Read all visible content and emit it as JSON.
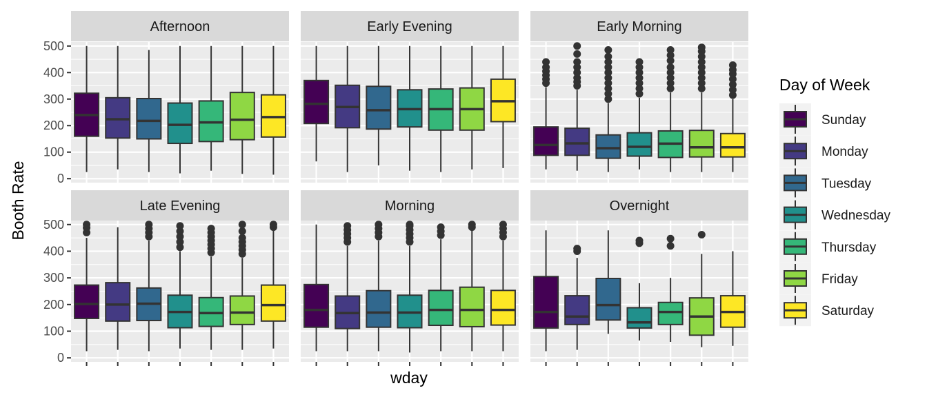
{
  "chart_data": {
    "type": "boxplot",
    "facets": [
      "Afternoon",
      "Early Evening",
      "Early Morning",
      "Late Evening",
      "Morning",
      "Overnight"
    ],
    "categories": [
      "Sunday",
      "Monday",
      "Tuesday",
      "Wednesday",
      "Thursday",
      "Friday",
      "Saturday"
    ],
    "colors": [
      "#440154",
      "#443A83",
      "#31688E",
      "#21908C",
      "#35B779",
      "#8FD744",
      "#FDE725"
    ],
    "xlabel": "wday",
    "ylabel": "Booth Rate",
    "ylim": [
      -15,
      515
    ],
    "yticks": [
      0,
      100,
      200,
      300,
      400,
      500
    ],
    "legend": {
      "title": "Day of Week",
      "position": "right"
    },
    "grid": true,
    "panels": [
      {
        "facet": "Afternoon",
        "boxes": [
          {
            "min": 25,
            "q1": 160,
            "median": 240,
            "q3": 322,
            "max": 500,
            "outliers": []
          },
          {
            "min": 35,
            "q1": 153,
            "median": 224,
            "q3": 305,
            "max": 500,
            "outliers": []
          },
          {
            "min": 25,
            "q1": 150,
            "median": 218,
            "q3": 302,
            "max": 485,
            "outliers": []
          },
          {
            "min": 20,
            "q1": 133,
            "median": 203,
            "q3": 285,
            "max": 500,
            "outliers": []
          },
          {
            "min": 30,
            "q1": 140,
            "median": 212,
            "q3": 293,
            "max": 500,
            "outliers": []
          },
          {
            "min": 18,
            "q1": 147,
            "median": 222,
            "q3": 325,
            "max": 500,
            "outliers": []
          },
          {
            "min": 15,
            "q1": 157,
            "median": 232,
            "q3": 316,
            "max": 500,
            "outliers": []
          }
        ]
      },
      {
        "facet": "Early Evening",
        "boxes": [
          {
            "min": 65,
            "q1": 208,
            "median": 282,
            "q3": 370,
            "max": 500,
            "outliers": []
          },
          {
            "min": 25,
            "q1": 192,
            "median": 270,
            "q3": 352,
            "max": 500,
            "outliers": []
          },
          {
            "min": 50,
            "q1": 187,
            "median": 258,
            "q3": 348,
            "max": 500,
            "outliers": []
          },
          {
            "min": 30,
            "q1": 195,
            "median": 262,
            "q3": 335,
            "max": 500,
            "outliers": []
          },
          {
            "min": 25,
            "q1": 183,
            "median": 262,
            "q3": 338,
            "max": 500,
            "outliers": []
          },
          {
            "min": 35,
            "q1": 183,
            "median": 262,
            "q3": 342,
            "max": 500,
            "outliers": []
          },
          {
            "min": 40,
            "q1": 215,
            "median": 292,
            "q3": 375,
            "max": 500,
            "outliers": []
          }
        ]
      },
      {
        "facet": "Early Morning",
        "boxes": [
          {
            "min": 35,
            "q1": 88,
            "median": 127,
            "q3": 195,
            "max": 345,
            "outliers": [
              360,
              375,
              390,
              405,
              420,
              440
            ]
          },
          {
            "min": 30,
            "q1": 88,
            "median": 133,
            "q3": 190,
            "max": 335,
            "outliers": [
              350,
              365,
              380,
              400,
              420,
              440,
              470,
              500
            ]
          },
          {
            "min": 25,
            "q1": 77,
            "median": 115,
            "q3": 165,
            "max": 285,
            "outliers": [
              300,
              320,
              340,
              360,
              380,
              400,
              420,
              440,
              460,
              485
            ]
          },
          {
            "min": 35,
            "q1": 85,
            "median": 120,
            "q3": 173,
            "max": 305,
            "outliers": [
              320,
              340,
              360,
              380,
              400,
              420,
              440
            ]
          },
          {
            "min": 25,
            "q1": 80,
            "median": 132,
            "q3": 180,
            "max": 325,
            "outliers": [
              340,
              360,
              380,
              400,
              420,
              445,
              465,
              485
            ]
          },
          {
            "min": 25,
            "q1": 82,
            "median": 118,
            "q3": 182,
            "max": 325,
            "outliers": [
              340,
              360,
              380,
              400,
              420,
              440,
              460,
              480,
              495
            ]
          },
          {
            "min": 25,
            "q1": 82,
            "median": 118,
            "q3": 170,
            "max": 300,
            "outliers": [
              315,
              335,
              355,
              375,
              395,
              410,
              428
            ]
          }
        ]
      },
      {
        "facet": "Late Evening",
        "boxes": [
          {
            "min": 25,
            "q1": 148,
            "median": 202,
            "q3": 273,
            "max": 450,
            "outliers": [
              470,
              488,
              500
            ]
          },
          {
            "min": 30,
            "q1": 138,
            "median": 200,
            "q3": 282,
            "max": 490,
            "outliers": []
          },
          {
            "min": 25,
            "q1": 140,
            "median": 203,
            "q3": 262,
            "max": 440,
            "outliers": [
              455,
              470,
              485,
              500
            ]
          },
          {
            "min": 35,
            "q1": 113,
            "median": 172,
            "q3": 235,
            "max": 400,
            "outliers": [
              415,
              435,
              455,
              475,
              495
            ]
          },
          {
            "min": 30,
            "q1": 118,
            "median": 168,
            "q3": 226,
            "max": 380,
            "outliers": [
              395,
              410,
              425,
              440,
              455,
              470,
              485
            ]
          },
          {
            "min": 30,
            "q1": 125,
            "median": 170,
            "q3": 232,
            "max": 375,
            "outliers": [
              390,
              405,
              420,
              435,
              450,
              475,
              500
            ]
          },
          {
            "min": 35,
            "q1": 138,
            "median": 198,
            "q3": 273,
            "max": 480,
            "outliers": [
              490,
              500
            ]
          }
        ]
      },
      {
        "facet": "Morning",
        "boxes": [
          {
            "min": 25,
            "q1": 115,
            "median": 180,
            "q3": 275,
            "max": 500,
            "outliers": []
          },
          {
            "min": 25,
            "q1": 110,
            "median": 168,
            "q3": 232,
            "max": 420,
            "outliers": [
              435,
              450,
              465,
              480,
              495
            ]
          },
          {
            "min": 25,
            "q1": 115,
            "median": 170,
            "q3": 252,
            "max": 440,
            "outliers": [
              455,
              470,
              485,
              500
            ]
          },
          {
            "min": 20,
            "q1": 113,
            "median": 170,
            "q3": 235,
            "max": 420,
            "outliers": [
              435,
              450,
              465,
              480,
              495,
              500
            ]
          },
          {
            "min": 25,
            "q1": 122,
            "median": 180,
            "q3": 253,
            "max": 445,
            "outliers": [
              460,
              475,
              490
            ]
          },
          {
            "min": 25,
            "q1": 117,
            "median": 180,
            "q3": 265,
            "max": 480,
            "outliers": [
              490,
              500
            ]
          },
          {
            "min": 25,
            "q1": 123,
            "median": 180,
            "q3": 253,
            "max": 440,
            "outliers": [
              455,
              470,
              485,
              500
            ]
          }
        ]
      },
      {
        "facet": "Overnight",
        "boxes": [
          {
            "min": 25,
            "q1": 112,
            "median": 172,
            "q3": 305,
            "max": 478,
            "outliers": []
          },
          {
            "min": 30,
            "q1": 125,
            "median": 155,
            "q3": 233,
            "max": 375,
            "outliers": [
              400,
              410
            ]
          },
          {
            "min": 90,
            "q1": 142,
            "median": 198,
            "q3": 298,
            "max": 478,
            "outliers": []
          },
          {
            "min": 65,
            "q1": 112,
            "median": 133,
            "q3": 188,
            "max": 280,
            "outliers": [
              430,
              440
            ]
          },
          {
            "min": 60,
            "q1": 125,
            "median": 172,
            "q3": 208,
            "max": 300,
            "outliers": [
              420,
              447
            ]
          },
          {
            "min": 40,
            "q1": 85,
            "median": 155,
            "q3": 225,
            "max": 390,
            "outliers": [
              462
            ]
          },
          {
            "min": 45,
            "q1": 115,
            "median": 172,
            "q3": 233,
            "max": 400,
            "outliers": []
          }
        ]
      }
    ]
  }
}
